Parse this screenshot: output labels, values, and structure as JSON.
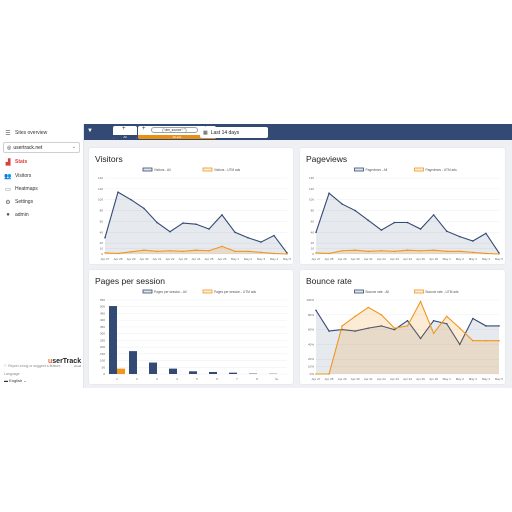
{
  "sidebar": {
    "sites_overview": "Sites overview",
    "site": "usertrack.net",
    "items": [
      {
        "label": "Stats",
        "icon": "stats-icon",
        "active": true
      },
      {
        "label": "Visitors",
        "icon": "users-icon"
      },
      {
        "label": "Heatmaps",
        "icon": "heatmap-icon"
      },
      {
        "label": "Settings",
        "icon": "gear-icon"
      },
      {
        "label": "admin",
        "icon": "user-icon"
      }
    ],
    "report_bug": "Report a bug or suggest a feature",
    "language_label": "Language",
    "language": "English",
    "logo": {
      "pre": "u",
      "main": "serTrack",
      "sub": "cloud"
    }
  },
  "topbar": {
    "segment_all": "All",
    "segment_utm": "All ads",
    "utm_chip": "{\"utm_source\":\"\"}",
    "date_range": "Last 14 days"
  },
  "colors": {
    "all": "#324a74",
    "ads": "#f0961e",
    "topbar": "#324a74"
  },
  "dates": [
    "Apr 27",
    "Apr 28",
    "Apr 29",
    "Apr 30",
    "Apr 21",
    "Apr 22",
    "Apr 23",
    "Apr 24",
    "Apr 25",
    "Apr 26",
    "May 1",
    "May 2",
    "May 3",
    "May 4",
    "May 5"
  ],
  "chart_data": [
    {
      "type": "area",
      "title": "Visitors",
      "legend": [
        "Visitors - All",
        "Visitors - UTM ads"
      ],
      "legend_position": "top",
      "ylim": [
        0,
        140
      ],
      "yticks": [
        0,
        10,
        20,
        40,
        60,
        80,
        100,
        120,
        140
      ],
      "series": [
        {
          "name": "Visitors - All",
          "values": [
            30,
            114,
            100,
            84,
            58,
            41,
            57,
            55,
            46,
            72,
            40,
            30,
            22,
            34,
            2
          ]
        },
        {
          "name": "Visitors - UTM ads",
          "values": [
            2,
            1,
            4,
            7,
            5,
            6,
            5,
            7,
            6,
            14,
            5,
            5,
            3,
            1,
            0
          ]
        }
      ]
    },
    {
      "type": "area",
      "title": "Pageviews",
      "legend": [
        "Pageviews - All",
        "Pageviews - UTM ads"
      ],
      "legend_position": "top",
      "ylim": [
        0,
        140
      ],
      "yticks": [
        0,
        10,
        20,
        40,
        60,
        80,
        100,
        120,
        140
      ],
      "series": [
        {
          "name": "Pageviews - All",
          "values": [
            40,
            112,
            92,
            80,
            62,
            44,
            58,
            58,
            46,
            72,
            42,
            32,
            24,
            38,
            2
          ]
        },
        {
          "name": "Pageviews - UTM ads",
          "values": [
            2,
            1,
            6,
            7,
            5,
            6,
            5,
            7,
            6,
            7,
            5,
            5,
            3,
            1,
            0
          ]
        }
      ]
    },
    {
      "type": "bar",
      "title": "Pages per session",
      "legend": [
        "Pages per session - All",
        "Pages per session - UTM ads"
      ],
      "legend_position": "top",
      "categories": [
        "1",
        "2",
        "3",
        "4",
        "5",
        "6",
        "7",
        "8",
        "9+"
      ],
      "ylim": [
        0,
        550
      ],
      "yticks": [
        0,
        50,
        100,
        150,
        200,
        250,
        300,
        350,
        400,
        450,
        500,
        550
      ],
      "series": [
        {
          "name": "Pages per session - All",
          "values": [
            505,
            170,
            85,
            40,
            20,
            15,
            10,
            3,
            2
          ]
        },
        {
          "name": "Pages per session - UTM ads",
          "values": [
            40,
            0,
            0,
            0,
            0,
            0,
            0,
            0,
            0
          ]
        }
      ]
    },
    {
      "type": "area",
      "title": "Bounce rate",
      "legend": [
        "Bounce rate - All",
        "Bounce rate - UTM ads"
      ],
      "legend_position": "top",
      "ylim": [
        0,
        100
      ],
      "yticks": [
        "0%",
        "10%",
        "20%",
        "40%",
        "60%",
        "80%",
        "100%"
      ],
      "series": [
        {
          "name": "Bounce rate - All",
          "values": [
            86,
            58,
            60,
            58,
            62,
            65,
            60,
            72,
            48,
            72,
            68,
            40,
            75,
            65,
            65
          ]
        },
        {
          "name": "Bounce rate - UTM ads",
          "values": [
            0,
            0,
            65,
            78,
            90,
            80,
            62,
            65,
            98,
            55,
            78,
            62,
            45,
            45,
            45
          ]
        }
      ]
    }
  ]
}
